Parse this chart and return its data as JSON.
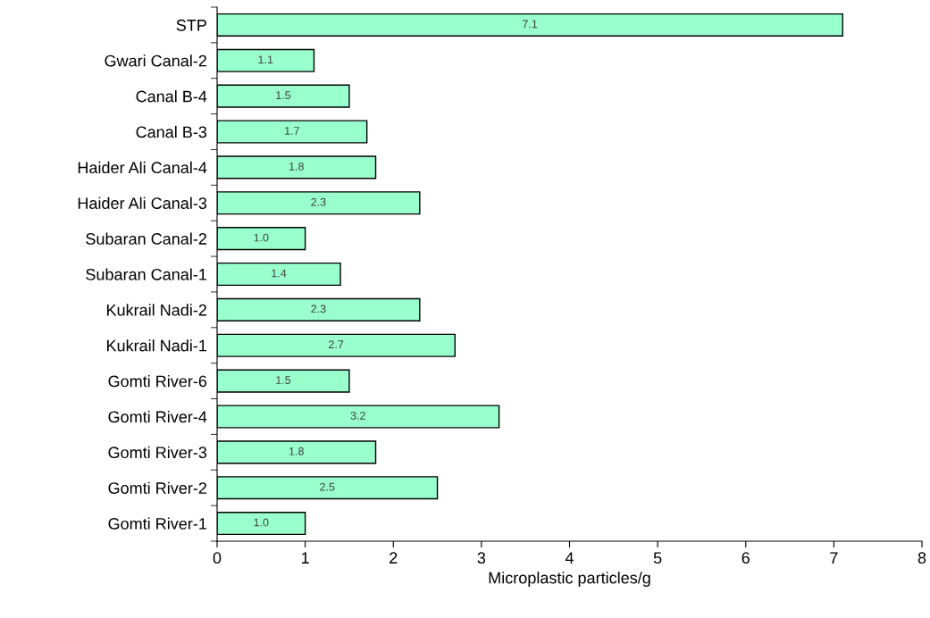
{
  "chart_data": {
    "type": "bar",
    "orientation": "horizontal",
    "xlabel": "Microplastic particles/g",
    "categories": [
      "STP",
      "Gwari Canal-2",
      "Canal B-4",
      "Canal B-3",
      "Haider Ali Canal-4",
      "Haider Ali Canal-3",
      "Subaran Canal-2",
      "Subaran Canal-1",
      "Kukrail Nadi-2",
      "Kukrail Nadi-1",
      "Gomti River-6",
      "Gomti River-4",
      "Gomti River-3",
      "Gomti River-2",
      "Gomti River-1"
    ],
    "values": [
      7.1,
      1.1,
      1.5,
      1.7,
      1.8,
      2.3,
      1.0,
      1.4,
      2.3,
      2.7,
      1.5,
      3.2,
      1.8,
      2.5,
      1.0
    ],
    "value_labels": [
      "7.1",
      "1.1",
      "1.5",
      "1.7",
      "1.8",
      "2.3",
      "1.0",
      "1.4",
      "2.3",
      "2.7",
      "1.5",
      "3.2",
      "1.8",
      "2.5",
      "1.0"
    ],
    "color": "#99ffcc",
    "xlim": [
      0,
      8
    ],
    "xticks": [
      0,
      1,
      2,
      3,
      4,
      5,
      6,
      7,
      8
    ],
    "grid": false,
    "legend": false
  }
}
